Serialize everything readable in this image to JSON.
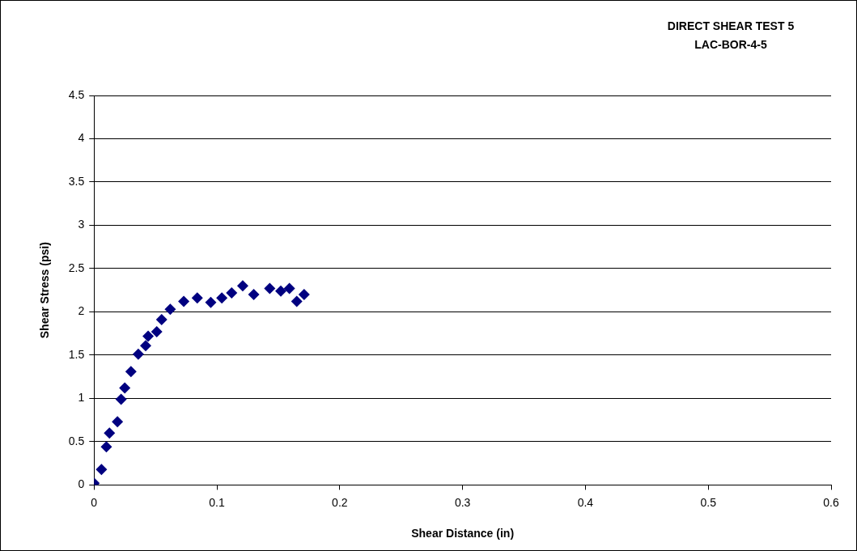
{
  "chart_data": {
    "type": "scatter",
    "title": "DIRECT SHEAR TEST 5",
    "subtitle": "LAC-BOR-4-5",
    "xlabel": "Shear Distance (in)",
    "ylabel": "Shear Stress (psi)",
    "xlim": [
      0,
      0.6
    ],
    "xticks": [
      0,
      0.1,
      0.2,
      0.3,
      0.4,
      0.5,
      0.6
    ],
    "ylim": [
      0,
      4.5
    ],
    "yticks": [
      0,
      0.5,
      1,
      1.5,
      2,
      2.5,
      3,
      3.5,
      4,
      4.5
    ],
    "grid": "y",
    "legend": false,
    "marker": "diamond",
    "x": [
      0,
      0.006,
      0.01,
      0.0125,
      0.019,
      0.022,
      0.025,
      0.03,
      0.036,
      0.042,
      0.044,
      0.051,
      0.055,
      0.062,
      0.073,
      0.084,
      0.095,
      0.104,
      0.112,
      0.121,
      0.13,
      0.143,
      0.152,
      0.159,
      0.165,
      0.171
    ],
    "series": [
      {
        "color": "#000080",
        "values": [
          0.02,
          0.18,
          0.44,
          0.6,
          0.73,
          0.99,
          1.12,
          1.31,
          1.51,
          1.61,
          1.72,
          1.77,
          1.91,
          2.03,
          2.12,
          2.16,
          2.11,
          2.16,
          2.22,
          2.3,
          2.2,
          2.27,
          2.24,
          2.27,
          2.12,
          2.2
        ]
      }
    ]
  }
}
